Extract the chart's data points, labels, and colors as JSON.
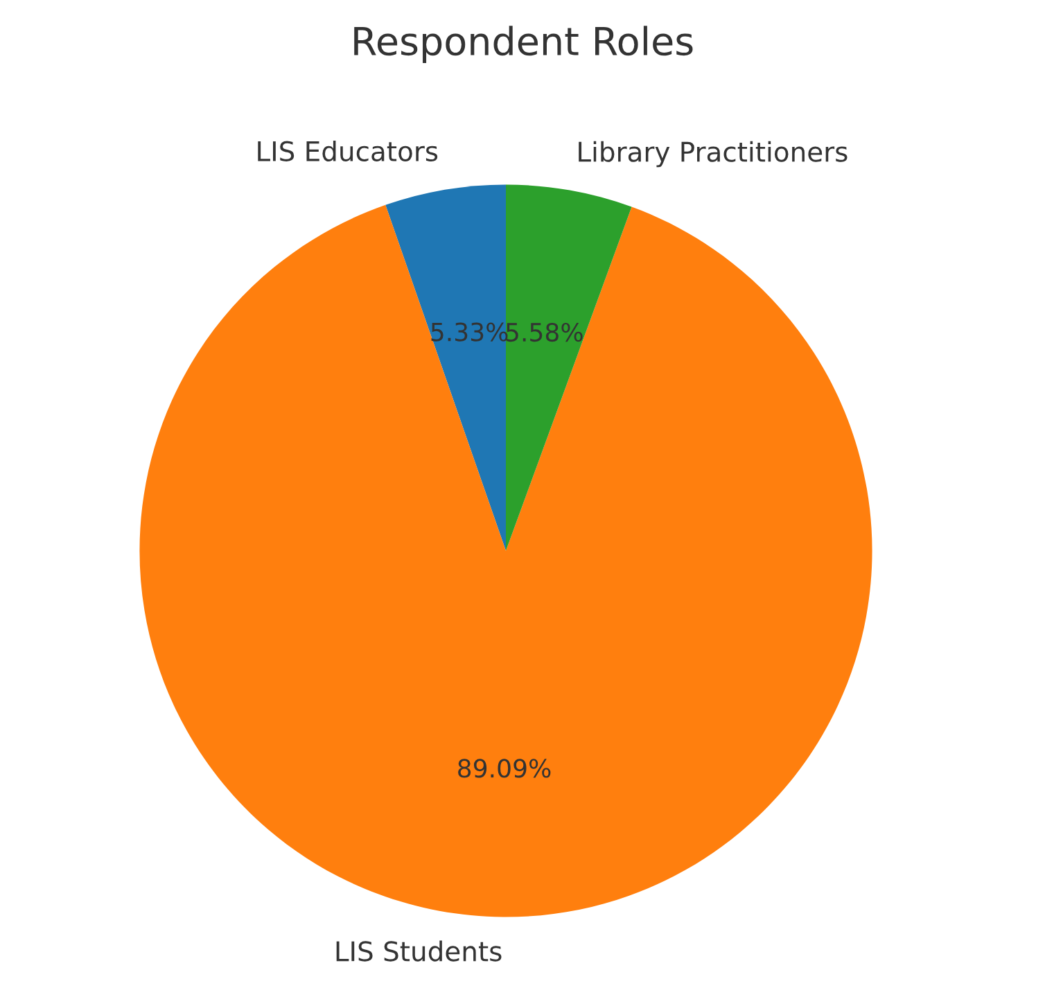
{
  "chart_data": {
    "type": "pie",
    "title": "Respondent Roles",
    "categories": [
      "LIS Educators",
      "LIS Students",
      "Library Practitioners"
    ],
    "values": [
      5.33,
      89.09,
      5.58
    ],
    "colors": [
      "#1f77b4",
      "#ff7f0e",
      "#2ca02c"
    ],
    "value_labels": [
      "5.33%",
      "89.09%",
      "5.58%"
    ]
  }
}
